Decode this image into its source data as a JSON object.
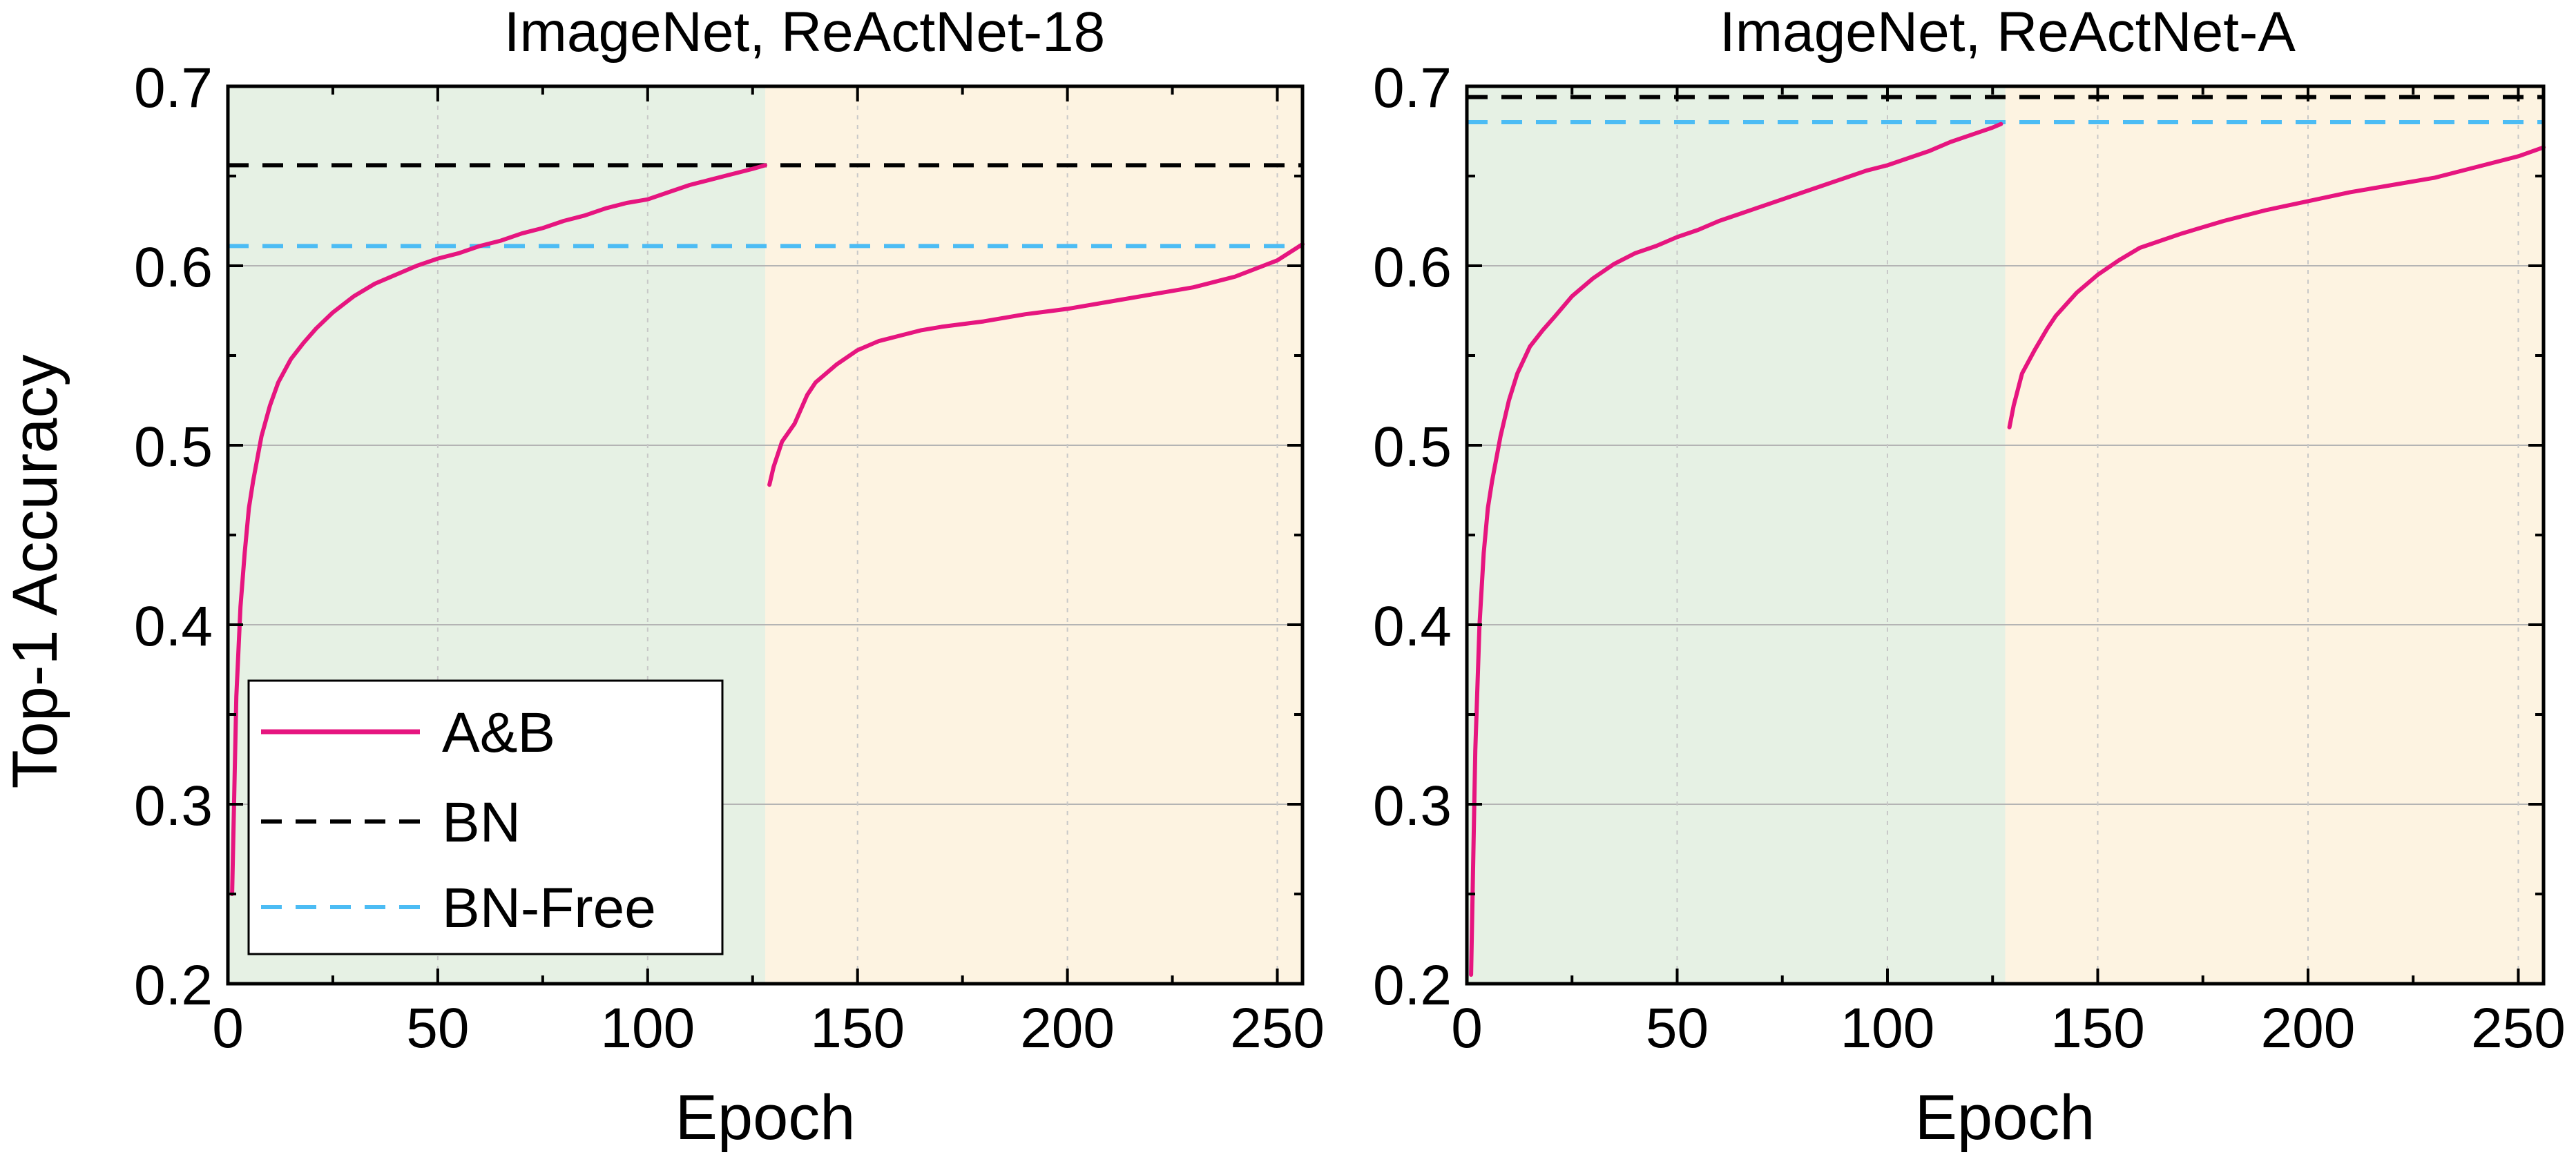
{
  "colors": {
    "ab": "#e6157f",
    "bn": "#000000",
    "bnfree": "#4cbcf4",
    "phase1_bg": "#e6f1e4",
    "phase2_bg": "#fdf3e1",
    "grid": "#c8c8c8"
  },
  "legend": {
    "ab": "A&B",
    "bn": "BN",
    "bnfree": "BN-Free"
  },
  "chart_data": [
    {
      "type": "line",
      "title": "ImageNet, ReActNet-18",
      "xlabel": "Epoch",
      "ylabel": "Top-1 Accuracy",
      "xlim": [
        0,
        256
      ],
      "ylim": [
        0.2,
        0.7
      ],
      "xticks": [
        0,
        50,
        100,
        150,
        200,
        250
      ],
      "yticks": [
        0.2,
        0.3,
        0.4,
        0.5,
        0.6,
        0.7
      ],
      "xtick_labels": [
        "0",
        "50",
        "100",
        "150",
        "200",
        "250"
      ],
      "ytick_labels": [
        "0.2",
        "0.3",
        "0.4",
        "0.5",
        "0.6",
        "0.7"
      ],
      "grid": true,
      "legend_position": "bottom-left",
      "shaded_regions": [
        {
          "x": [
            0,
            128
          ],
          "color": "#e6f1e4"
        },
        {
          "x": [
            128,
            256
          ],
          "color": "#fdf3e1"
        }
      ],
      "hlines": [
        {
          "name": "BN",
          "y": 0.656,
          "style": "dashed",
          "color": "#000000"
        },
        {
          "name": "BN-Free",
          "y": 0.611,
          "style": "dashed",
          "color": "#4cbcf4"
        }
      ],
      "series": [
        {
          "name": "A&B",
          "color": "#e6157f",
          "segments": [
            {
              "x": [
                1,
                2,
                3,
                4,
                5,
                6,
                8,
                10,
                12,
                15,
                18,
                21,
                25,
                30,
                35,
                40,
                45,
                50,
                55,
                60,
                65,
                70,
                75,
                80,
                85,
                90,
                95,
                100,
                105,
                110,
                115,
                120,
                125,
                128
              ],
              "y": [
                0.25,
                0.36,
                0.41,
                0.44,
                0.465,
                0.48,
                0.505,
                0.522,
                0.535,
                0.548,
                0.557,
                0.565,
                0.574,
                0.583,
                0.59,
                0.595,
                0.6,
                0.604,
                0.607,
                0.611,
                0.614,
                0.618,
                0.621,
                0.625,
                0.628,
                0.632,
                0.635,
                0.637,
                0.641,
                0.645,
                0.648,
                0.651,
                0.654,
                0.656
              ]
            },
            {
              "x": [
                129,
                130,
                132,
                135,
                138,
                140,
                145,
                150,
                155,
                160,
                165,
                170,
                180,
                190,
                200,
                210,
                220,
                230,
                240,
                250,
                256
              ],
              "y": [
                0.478,
                0.488,
                0.502,
                0.512,
                0.528,
                0.535,
                0.545,
                0.553,
                0.558,
                0.561,
                0.564,
                0.566,
                0.569,
                0.573,
                0.576,
                0.58,
                0.584,
                0.588,
                0.594,
                0.603,
                0.612
              ]
            }
          ]
        }
      ]
    },
    {
      "type": "line",
      "title": "ImageNet, ReActNet-A",
      "xlabel": "Epoch",
      "ylabel": "",
      "xlim": [
        0,
        256
      ],
      "ylim": [
        0.2,
        0.7
      ],
      "xticks": [
        0,
        50,
        100,
        150,
        200,
        250
      ],
      "yticks": [
        0.2,
        0.3,
        0.4,
        0.5,
        0.6,
        0.7
      ],
      "xtick_labels": [
        "0",
        "50",
        "100",
        "150",
        "200",
        "250"
      ],
      "ytick_labels": [
        "0.2",
        "0.3",
        "0.4",
        "0.5",
        "0.6",
        "0.7"
      ],
      "grid": true,
      "shaded_regions": [
        {
          "x": [
            0,
            128
          ],
          "color": "#e6f1e4"
        },
        {
          "x": [
            128,
            256
          ],
          "color": "#fdf3e1"
        }
      ],
      "hlines": [
        {
          "name": "BN",
          "y": 0.694,
          "style": "dashed",
          "color": "#000000"
        },
        {
          "name": "BN-Free",
          "y": 0.68,
          "style": "dashed",
          "color": "#4cbcf4"
        }
      ],
      "series": [
        {
          "name": "A&B",
          "color": "#e6157f",
          "segments": [
            {
              "x": [
                1,
                2,
                3,
                4,
                5,
                6,
                8,
                10,
                12,
                15,
                18,
                21,
                25,
                30,
                35,
                40,
                45,
                50,
                55,
                60,
                65,
                70,
                75,
                80,
                85,
                90,
                95,
                100,
                105,
                110,
                115,
                120,
                125,
                127
              ],
              "y": [
                0.205,
                0.33,
                0.4,
                0.44,
                0.465,
                0.48,
                0.505,
                0.525,
                0.54,
                0.555,
                0.564,
                0.572,
                0.583,
                0.593,
                0.601,
                0.607,
                0.611,
                0.616,
                0.62,
                0.625,
                0.629,
                0.633,
                0.637,
                0.641,
                0.645,
                0.649,
                0.653,
                0.656,
                0.66,
                0.664,
                0.669,
                0.673,
                0.677,
                0.679
              ]
            },
            {
              "x": [
                129,
                130,
                132,
                135,
                138,
                140,
                145,
                150,
                155,
                160,
                165,
                170,
                180,
                190,
                200,
                210,
                220,
                230,
                240,
                250,
                256
              ],
              "y": [
                0.51,
                0.522,
                0.54,
                0.553,
                0.565,
                0.572,
                0.585,
                0.595,
                0.603,
                0.61,
                0.614,
                0.618,
                0.625,
                0.631,
                0.636,
                0.641,
                0.645,
                0.649,
                0.655,
                0.661,
                0.666
              ]
            }
          ]
        }
      ]
    }
  ]
}
